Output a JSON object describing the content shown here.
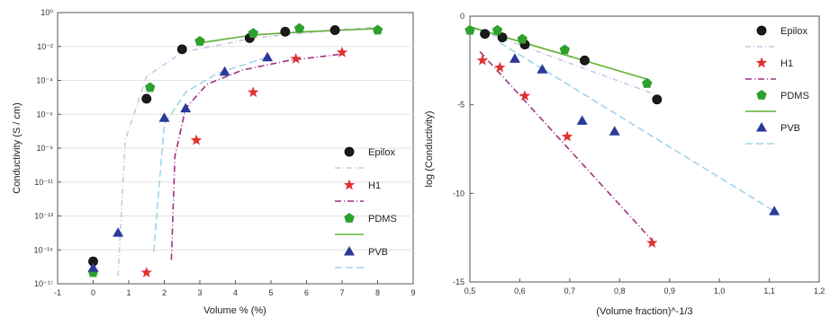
{
  "chart_data": [
    {
      "type": "scatter",
      "xlabel": "Volume % (%)",
      "ylabel": "Conductivity (S / cm)",
      "xlim": [
        -1,
        9
      ],
      "ylim_log10": [
        -17,
        0
      ],
      "y_scale": "log",
      "xticks": [
        "-1",
        "0",
        "1",
        "2",
        "3",
        "4",
        "5",
        "6",
        "7",
        "8",
        "9"
      ],
      "yticks": [
        "10⁻¹⁷",
        "10⁻¹⁵",
        "10⁻¹³",
        "10⁻¹¹",
        "10⁻⁸",
        "10⁻⁶",
        "10⁻⁴",
        "10⁻²",
        "10⁰"
      ],
      "grid": true,
      "legend_position": "bottom-right",
      "series": [
        {
          "name": "Epilox",
          "marker": "circle",
          "color": "#1a1a1a",
          "x": [
            0,
            1.5,
            2.5,
            4.4,
            5.4,
            6.8
          ],
          "y_log10": [
            -15.6,
            -5.4,
            -2.3,
            -1.6,
            -1.2,
            -1.1
          ],
          "fit_color": "#c8c8e8",
          "fit_x": [
            0.7,
            0.9,
            1.5,
            2.5,
            4.5,
            6.8,
            8.0
          ],
          "fit_y_log10": [
            -16.5,
            -8.0,
            -4.0,
            -2.5,
            -1.6,
            -1.1,
            -0.9
          ]
        },
        {
          "name": "H1",
          "marker": "star",
          "color": "#e03030",
          "x": [
            0,
            1.5,
            2.9,
            4.5,
            5.7,
            7.0
          ],
          "y_log10": [
            -16.3,
            -16.3,
            -8.0,
            -5.0,
            -2.9,
            -2.5
          ],
          "fit_color": "#a03080",
          "fit_x": [
            2.2,
            2.3,
            2.6,
            3.2,
            4.2,
            5.5,
            7.0
          ],
          "fit_y_log10": [
            -15.5,
            -9.0,
            -6.0,
            -4.5,
            -3.6,
            -3.0,
            -2.6
          ]
        },
        {
          "name": "PDMS",
          "marker": "pentagon",
          "color": "#2ea02e",
          "x": [
            0,
            1.6,
            3.0,
            4.5,
            5.8,
            8.0
          ],
          "y_log10": [
            -16.3,
            -4.7,
            -1.8,
            -1.3,
            -1.0,
            -1.1
          ],
          "fit_color": "#60b030",
          "fit_x": [
            3.0,
            4.5,
            6.0,
            8.0
          ],
          "fit_y_log10": [
            -1.9,
            -1.4,
            -1.2,
            -1.0
          ]
        },
        {
          "name": "PVB",
          "marker": "triangle",
          "color": "#2a3a9a",
          "x": [
            0,
            0.7,
            2.0,
            2.6,
            3.7,
            4.9
          ],
          "y_log10": [
            -16.0,
            -13.8,
            -6.6,
            -6.0,
            -3.7,
            -2.8
          ],
          "fit_color": "#9fd4ee",
          "fit_x": [
            1.7,
            2.0,
            2.6,
            3.5,
            4.9
          ],
          "fit_y_log10": [
            -15.0,
            -7.0,
            -5.0,
            -3.8,
            -2.8
          ]
        }
      ]
    },
    {
      "type": "scatter",
      "xlabel": "(Volume fraction)^-1/3",
      "ylabel": "log (Conductivity)",
      "xlim": [
        0.5,
        1.2
      ],
      "ylim": [
        -15,
        0
      ],
      "xticks": [
        "0,5",
        "0,6",
        "0,7",
        "0,8",
        "0,9",
        "1,0",
        "1,1",
        "1,2"
      ],
      "yticks": [
        "0",
        "-5",
        "-10",
        "-15"
      ],
      "grid": false,
      "legend_position": "top-right",
      "series": [
        {
          "name": "Epilox",
          "marker": "circle",
          "color": "#1a1a1a",
          "x": [
            0.53,
            0.565,
            0.61,
            0.73,
            0.875
          ],
          "y": [
            -1.0,
            -1.2,
            -1.6,
            -2.5,
            -4.7
          ],
          "fit_color": "#c8c8e8",
          "fit_x": [
            0.5,
            0.88
          ],
          "fit_y": [
            -0.6,
            -4.5
          ]
        },
        {
          "name": "H1",
          "marker": "star",
          "color": "#e03030",
          "x": [
            0.525,
            0.56,
            0.61,
            0.695,
            0.865
          ],
          "y": [
            -2.5,
            -2.9,
            -4.5,
            -6.8,
            -12.8
          ],
          "fit_color": "#a03080",
          "fit_x": [
            0.52,
            0.87
          ],
          "fit_y": [
            -2.0,
            -12.8
          ]
        },
        {
          "name": "PDMS",
          "marker": "pentagon",
          "color": "#2ea02e",
          "x": [
            0.5,
            0.555,
            0.605,
            0.69,
            0.855
          ],
          "y": [
            -0.8,
            -0.8,
            -1.3,
            -1.9,
            -3.8
          ],
          "fit_color": "#60b030",
          "fit_x": [
            0.5,
            0.86
          ],
          "fit_y": [
            -0.6,
            -3.6
          ]
        },
        {
          "name": "PVB",
          "marker": "triangle",
          "color": "#2a3a9a",
          "x": [
            0.59,
            0.645,
            0.725,
            0.79,
            1.11
          ],
          "y": [
            -2.4,
            -3.0,
            -5.9,
            -6.5,
            -11.0
          ],
          "fit_color": "#9fd4ee",
          "fit_x": [
            0.56,
            1.11
          ],
          "fit_y": [
            -1.5,
            -11.0
          ]
        }
      ]
    }
  ]
}
